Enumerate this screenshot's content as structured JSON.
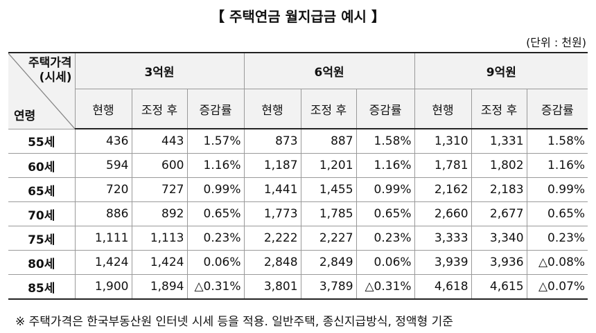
{
  "title": "【 주택연금 월지급금 예시 】",
  "unit": "(단위 : 천원)",
  "table": {
    "corner_top": "주택가격\n(시세)",
    "corner_bottom": "연령",
    "groups": [
      "3억원",
      "6억원",
      "9억원"
    ],
    "subheaders": [
      "현행",
      "조정 후",
      "증감률"
    ],
    "rows": [
      {
        "age": "55세",
        "cells": [
          "436",
          "443",
          "1.57%",
          "873",
          "887",
          "1.58%",
          "1,310",
          "1,331",
          "1.58%"
        ]
      },
      {
        "age": "60세",
        "cells": [
          "594",
          "600",
          "1.16%",
          "1,187",
          "1,201",
          "1.16%",
          "1,781",
          "1,802",
          "1.16%"
        ]
      },
      {
        "age": "65세",
        "cells": [
          "720",
          "727",
          "0.99%",
          "1,441",
          "1,455",
          "0.99%",
          "2,162",
          "2,183",
          "0.99%"
        ]
      },
      {
        "age": "70세",
        "cells": [
          "886",
          "892",
          "0.65%",
          "1,773",
          "1,785",
          "0.65%",
          "2,660",
          "2,677",
          "0.65%"
        ]
      },
      {
        "age": "75세",
        "cells": [
          "1,111",
          "1,113",
          "0.23%",
          "2,222",
          "2,227",
          "0.23%",
          "3,333",
          "3,340",
          "0.23%"
        ]
      },
      {
        "age": "80세",
        "cells": [
          "1,424",
          "1,424",
          "0.06%",
          "2,848",
          "2,849",
          "0.06%",
          "3,939",
          "3,936",
          "△0.08%"
        ]
      },
      {
        "age": "85세",
        "cells": [
          "1,900",
          "1,894",
          "△0.31%",
          "3,801",
          "3,789",
          "△0.31%",
          "4,618",
          "4,615",
          "△0.07%"
        ]
      }
    ]
  },
  "footnote": "※ 주택가격은 한국부동산원 인터넷 시세 등을 적용. 일반주택, 종신지급방식, 정액형 기준"
}
